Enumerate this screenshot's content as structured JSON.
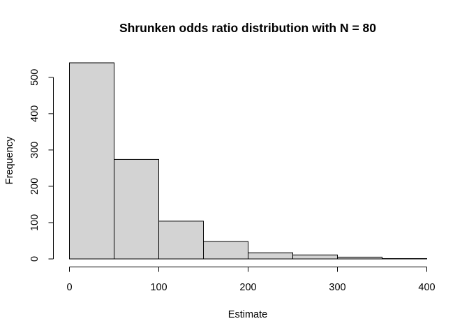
{
  "chart_data": {
    "type": "bar",
    "title": "Shrunken odds ratio distribution with N = 80",
    "xlabel": "Estimate",
    "ylabel": "Frequency",
    "bin_edges": [
      0,
      50,
      100,
      150,
      200,
      250,
      300,
      350,
      400
    ],
    "values": [
      540,
      274,
      104,
      48,
      17,
      11,
      5,
      1
    ],
    "xlim": [
      0,
      400
    ],
    "ylim": [
      0,
      540
    ],
    "x_ticks": [
      0,
      100,
      200,
      300,
      400
    ],
    "y_ticks": [
      0,
      100,
      200,
      300,
      400,
      500
    ],
    "bar_fill": "#d3d3d3",
    "bar_stroke": "#000000",
    "grid": false,
    "legend": "none"
  }
}
